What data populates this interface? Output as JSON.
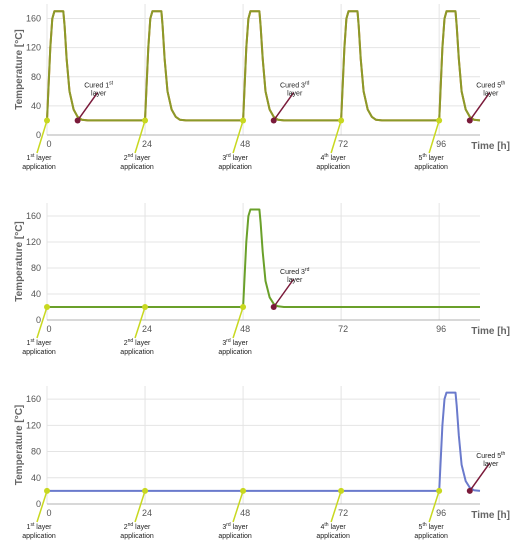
{
  "chart_data": [
    {
      "type": "line",
      "xlabel": "Time [h]",
      "ylabel": "Temperature [°C]",
      "xlim": [
        0,
        106
      ],
      "ylim": [
        0,
        180
      ],
      "x_ticks": [
        0,
        24,
        48,
        72,
        96
      ],
      "y_ticks": [
        0,
        40,
        80,
        120,
        160
      ],
      "grid": true,
      "series": [
        {
          "color": "#e8702a",
          "x": [
            0,
            0.8,
            1.3,
            1.8,
            2.2,
            4.0,
            4.3,
            4.8,
            5.5,
            6.5,
            7.5,
            8.5,
            10,
            24,
            24.8,
            25.3,
            25.8,
            26.2,
            28.0,
            28.3,
            28.8,
            29.5,
            30.5,
            31.5,
            32.5,
            34,
            48,
            48.8,
            49.3,
            49.8,
            50.2,
            52.0,
            52.3,
            52.8,
            53.5,
            54.5,
            55.5,
            56.5,
            58,
            72,
            72.8,
            73.3,
            73.8,
            74.2,
            76.0,
            76.3,
            76.8,
            77.5,
            78.5,
            79.5,
            80.5,
            82,
            96,
            96.8,
            97.3,
            97.8,
            98.2,
            100.0,
            100.3,
            100.8,
            101.5,
            102.5,
            103.5,
            104.5,
            106
          ],
          "y": [
            20,
            120,
            160,
            170,
            170,
            170,
            150,
            105,
            60,
            35,
            25,
            21,
            20,
            20,
            120,
            160,
            170,
            170,
            170,
            150,
            105,
            60,
            35,
            25,
            21,
            20,
            20,
            120,
            160,
            170,
            170,
            170,
            150,
            105,
            60,
            35,
            25,
            21,
            20,
            20,
            120,
            160,
            170,
            170,
            170,
            150,
            105,
            60,
            35,
            25,
            21,
            20,
            20,
            120,
            160,
            170,
            170,
            170,
            150,
            105,
            60,
            35,
            25,
            21,
            20
          ]
        },
        {
          "color": "#8a9a2a",
          "x": [
            0,
            0.8,
            1.3,
            1.8,
            2.2,
            4.0,
            4.3,
            4.8,
            5.5,
            6.5,
            7.5,
            8.5,
            10,
            24,
            24.8,
            25.3,
            25.8,
            26.2,
            28.0,
            28.3,
            28.8,
            29.5,
            30.5,
            31.5,
            32.5,
            34,
            48,
            48.8,
            49.3,
            49.8,
            50.2,
            52.0,
            52.3,
            52.8,
            53.5,
            54.5,
            55.5,
            56.5,
            58,
            72,
            72.8,
            73.3,
            73.8,
            74.2,
            76.0,
            76.3,
            76.8,
            77.5,
            78.5,
            79.5,
            80.5,
            82,
            96,
            96.8,
            97.3,
            97.8,
            98.2,
            100.0,
            100.3,
            100.8,
            101.5,
            102.5,
            103.5,
            104.5,
            106
          ],
          "y": [
            20,
            120,
            160,
            170,
            170,
            170,
            150,
            105,
            60,
            35,
            25,
            21,
            20,
            20,
            120,
            160,
            170,
            170,
            170,
            150,
            105,
            60,
            35,
            25,
            21,
            20,
            20,
            120,
            160,
            170,
            170,
            170,
            150,
            105,
            60,
            35,
            25,
            21,
            20,
            20,
            120,
            160,
            170,
            170,
            170,
            150,
            105,
            60,
            35,
            25,
            21,
            20,
            20,
            120,
            160,
            170,
            170,
            170,
            150,
            105,
            60,
            35,
            25,
            21,
            20
          ]
        }
      ],
      "annotations": [
        {
          "text": [
            "1st layer",
            "application"
          ],
          "x": 0,
          "y": 20,
          "color": "#c8d820",
          "kind": "application"
        },
        {
          "text": [
            "2nd layer",
            "application"
          ],
          "x": 24,
          "y": 20,
          "color": "#c8d820",
          "kind": "application"
        },
        {
          "text": [
            "3rd layer",
            "application"
          ],
          "x": 48,
          "y": 20,
          "color": "#c8d820",
          "kind": "application"
        },
        {
          "text": [
            "4th layer",
            "application"
          ],
          "x": 72,
          "y": 20,
          "color": "#c8d820",
          "kind": "application"
        },
        {
          "text": [
            "5th layer",
            "application"
          ],
          "x": 96,
          "y": 20,
          "color": "#c8d820",
          "kind": "application"
        },
        {
          "text": [
            "Cured 1st",
            "layer"
          ],
          "x": 7.5,
          "y": 20,
          "color": "#7a1a3a",
          "kind": "cured"
        },
        {
          "text": [
            "Cured 3rd",
            "layer"
          ],
          "x": 55.5,
          "y": 20,
          "color": "#7a1a3a",
          "kind": "cured"
        },
        {
          "text": [
            "Cured 5th",
            "layer"
          ],
          "x": 103.5,
          "y": 20,
          "color": "#7a1a3a",
          "kind": "cured"
        }
      ]
    },
    {
      "type": "line",
      "xlabel": "Time [h]",
      "ylabel": "Temperature [°C]",
      "xlim": [
        0,
        106
      ],
      "ylim": [
        0,
        180
      ],
      "x_ticks": [
        0,
        24,
        48,
        72,
        96
      ],
      "y_ticks": [
        0,
        40,
        80,
        120,
        160
      ],
      "grid": true,
      "series": [
        {
          "color": "#6aa02a",
          "x": [
            0,
            48,
            48.8,
            49.3,
            49.8,
            50.2,
            52.0,
            52.3,
            52.8,
            53.5,
            54.5,
            55.5,
            56.5,
            58,
            106
          ],
          "y": [
            20,
            20,
            120,
            160,
            170,
            170,
            170,
            150,
            105,
            60,
            35,
            25,
            21,
            20,
            20
          ]
        }
      ],
      "annotations": [
        {
          "text": [
            "1st layer",
            "application"
          ],
          "x": 0,
          "y": 20,
          "color": "#c8d820",
          "kind": "application"
        },
        {
          "text": [
            "2nd layer",
            "application"
          ],
          "x": 24,
          "y": 20,
          "color": "#c8d820",
          "kind": "application"
        },
        {
          "text": [
            "3rd layer",
            "application"
          ],
          "x": 48,
          "y": 20,
          "color": "#c8d820",
          "kind": "application"
        },
        {
          "text": [
            "Cured 3rd",
            "layer"
          ],
          "x": 55.5,
          "y": 20,
          "color": "#7a1a3a",
          "kind": "cured"
        }
      ]
    },
    {
      "type": "line",
      "xlabel": "Time [h]",
      "ylabel": "Temperature [°C]",
      "xlim": [
        0,
        106
      ],
      "ylim": [
        0,
        180
      ],
      "x_ticks": [
        0,
        24,
        48,
        72,
        96
      ],
      "y_ticks": [
        0,
        40,
        80,
        120,
        160
      ],
      "grid": true,
      "series": [
        {
          "color": "#6a7acc",
          "x": [
            0,
            96,
            96.8,
            97.3,
            97.8,
            98.2,
            100.0,
            100.3,
            100.8,
            101.5,
            102.5,
            103.5,
            104.5,
            106
          ],
          "y": [
            20,
            20,
            120,
            160,
            170,
            170,
            170,
            150,
            105,
            60,
            35,
            25,
            21,
            20
          ]
        }
      ],
      "annotations": [
        {
          "text": [
            "1st layer",
            "application"
          ],
          "x": 0,
          "y": 20,
          "color": "#c8d820",
          "kind": "application"
        },
        {
          "text": [
            "2nd layer",
            "application"
          ],
          "x": 24,
          "y": 20,
          "color": "#c8d820",
          "kind": "application"
        },
        {
          "text": [
            "3rd layer",
            "application"
          ],
          "x": 48,
          "y": 20,
          "color": "#c8d820",
          "kind": "application"
        },
        {
          "text": [
            "4th layer",
            "application"
          ],
          "x": 72,
          "y": 20,
          "color": "#c8d820",
          "kind": "application"
        },
        {
          "text": [
            "5th layer",
            "application"
          ],
          "x": 96,
          "y": 20,
          "color": "#c8d820",
          "kind": "application"
        },
        {
          "text": [
            "Cured 5th",
            "layer"
          ],
          "x": 103.5,
          "y": 20,
          "color": "#7a1a3a",
          "kind": "cured"
        }
      ]
    }
  ]
}
